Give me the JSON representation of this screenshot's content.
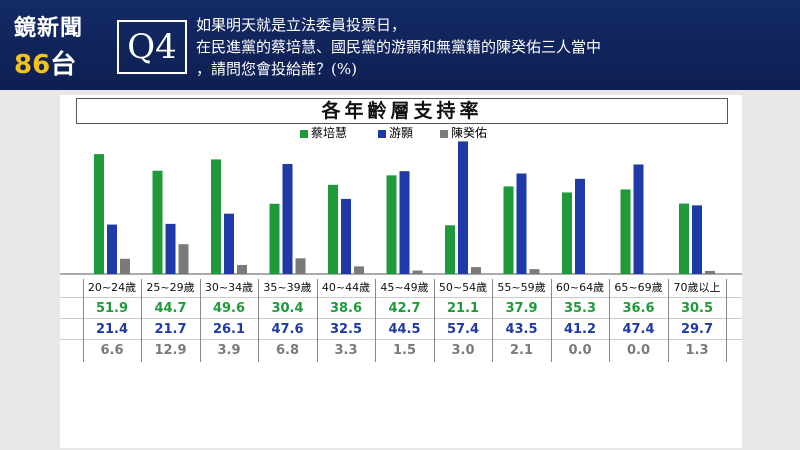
{
  "brand": {
    "logo_line1": "鏡新聞",
    "logo_num": "86",
    "logo_tail": "台"
  },
  "question": {
    "badge": "Q4",
    "line1": "如果明天就是立法委員投票日，",
    "line2": "在民進黨的蔡培慧、國民黨的游顥和無黨籍的陳癸佑三人當中",
    "line3": "，請問您會投給誰？(%)"
  },
  "colors": {
    "green": "#1f9a3a",
    "blue": "#1f3aa6",
    "gray": "#7a7a7a"
  },
  "chart_data": {
    "type": "bar",
    "title": "各年齡層支持率",
    "categories": [
      "20~24歲",
      "25~29歲",
      "30~34歲",
      "35~39歲",
      "40~44歲",
      "45~49歲",
      "50~54歲",
      "55~59歲",
      "60~64歲",
      "65~69歲",
      "70歲以上"
    ],
    "series": [
      {
        "name": "蔡培慧",
        "color": "#1f9a3a",
        "values": [
          51.9,
          44.7,
          49.6,
          30.4,
          38.6,
          42.7,
          21.1,
          37.9,
          35.3,
          36.6,
          30.5
        ]
      },
      {
        "name": "游顥",
        "color": "#1f3aa6",
        "values": [
          21.4,
          21.7,
          26.1,
          47.6,
          32.5,
          44.5,
          57.4,
          43.5,
          41.2,
          47.4,
          29.7
        ]
      },
      {
        "name": "陳癸佑",
        "color": "#7a7a7a",
        "values": [
          6.6,
          12.9,
          3.9,
          6.8,
          3.3,
          1.5,
          3.0,
          2.1,
          0.0,
          0.0,
          1.3
        ]
      }
    ],
    "value_labels": [
      [
        "51.9",
        "44.7",
        "49.6",
        "30.4",
        "38.6",
        "42.7",
        "21.1",
        "37.9",
        "35.3",
        "36.6",
        "30.5"
      ],
      [
        "21.4",
        "21.7",
        "26.1",
        "47.6",
        "32.5",
        "44.5",
        "57.4",
        "43.5",
        "41.2",
        "47.4",
        "29.7"
      ],
      [
        "6.6",
        "12.9",
        "3.9",
        "6.8",
        "3.3",
        "1.5",
        "3.0",
        "2.1",
        "0.0",
        "0.0",
        "1.3"
      ]
    ],
    "ylim": [
      0,
      58
    ],
    "legend_position": "top-center",
    "grid": false
  }
}
